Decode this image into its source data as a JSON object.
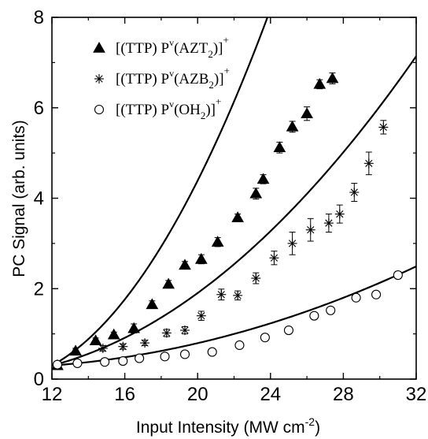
{
  "chart_data": {
    "type": "scatter",
    "xlabel": "Input Intensity (MW cm",
    "xlabel_sup": "-2",
    "xlabel_end": ")",
    "ylabel": "PC Signal (arb. units)",
    "xlim": [
      12,
      32
    ],
    "ylim": [
      0,
      8
    ],
    "xticks": [
      12,
      16,
      20,
      24,
      28,
      32
    ],
    "yticks": [
      0,
      2,
      4,
      6,
      8
    ],
    "grid": false,
    "legend_position": "top-left",
    "series": [
      {
        "legend": {
          "a": "[(TTP) P",
          "b": "v",
          "c": "(AZT",
          "d": "2",
          "e": ")]",
          "f": "+"
        },
        "marker": "filled-triangle",
        "points": [
          {
            "x": 12.3,
            "y": 0.3,
            "err": 0.06
          },
          {
            "x": 13.3,
            "y": 0.62,
            "err": 0.06
          },
          {
            "x": 14.4,
            "y": 0.85,
            "err": 0.06
          },
          {
            "x": 15.4,
            "y": 0.98,
            "err": 0.06
          },
          {
            "x": 16.5,
            "y": 1.12,
            "err": 0.1
          },
          {
            "x": 17.5,
            "y": 1.65,
            "err": 0.08
          },
          {
            "x": 18.4,
            "y": 2.1,
            "err": 0.08
          },
          {
            "x": 19.3,
            "y": 2.52,
            "err": 0.08
          },
          {
            "x": 20.2,
            "y": 2.65,
            "err": 0.1
          },
          {
            "x": 21.1,
            "y": 3.03,
            "err": 0.1
          },
          {
            "x": 22.2,
            "y": 3.57,
            "err": 0.08
          },
          {
            "x": 23.2,
            "y": 4.1,
            "err": 0.12
          },
          {
            "x": 23.6,
            "y": 4.42,
            "err": 0.1
          },
          {
            "x": 24.5,
            "y": 5.12,
            "err": 0.12
          },
          {
            "x": 25.2,
            "y": 5.58,
            "err": 0.12
          },
          {
            "x": 26.0,
            "y": 5.87,
            "err": 0.15
          },
          {
            "x": 26.7,
            "y": 6.52,
            "err": 0.1
          },
          {
            "x": 27.4,
            "y": 6.65,
            "err": 0.12
          }
        ],
        "fit_coeffs": [
          0.3,
          0.22,
          0.0364
        ]
      },
      {
        "legend": {
          "a": "[(TTP) P",
          "b": "v",
          "c": "(AZB",
          "d": "2",
          "e": ")]",
          "f": "+"
        },
        "marker": "asterisk",
        "points": [
          {
            "x": 12.3,
            "y": 0.32,
            "err": 0.05
          },
          {
            "x": 14.8,
            "y": 0.68,
            "err": 0.06
          },
          {
            "x": 15.9,
            "y": 0.72,
            "err": 0.06
          },
          {
            "x": 17.1,
            "y": 0.8,
            "err": 0.06
          },
          {
            "x": 18.3,
            "y": 1.02,
            "err": 0.08
          },
          {
            "x": 19.3,
            "y": 1.08,
            "err": 0.08
          },
          {
            "x": 20.2,
            "y": 1.4,
            "err": 0.1
          },
          {
            "x": 21.3,
            "y": 1.87,
            "err": 0.12
          },
          {
            "x": 22.2,
            "y": 1.85,
            "err": 0.1
          },
          {
            "x": 23.2,
            "y": 2.23,
            "err": 0.12
          },
          {
            "x": 24.2,
            "y": 2.68,
            "err": 0.15
          },
          {
            "x": 25.2,
            "y": 3.0,
            "err": 0.25
          },
          {
            "x": 26.2,
            "y": 3.3,
            "err": 0.25
          },
          {
            "x": 27.2,
            "y": 3.45,
            "err": 0.2
          },
          {
            "x": 27.8,
            "y": 3.65,
            "err": 0.2
          },
          {
            "x": 28.6,
            "y": 4.13,
            "err": 0.2
          },
          {
            "x": 29.4,
            "y": 4.77,
            "err": 0.25
          },
          {
            "x": 30.2,
            "y": 5.57,
            "err": 0.15
          }
        ],
        "fit_coeffs": [
          0.3,
          0.106,
          0.0118
        ]
      },
      {
        "legend": {
          "a": "[(TTP) P",
          "b": "v",
          "c": "(OH",
          "d": "2",
          "e": ")]",
          "f": "+"
        },
        "marker": "open-circle",
        "points": [
          {
            "x": 12.3,
            "y": 0.32,
            "err": 0.04
          },
          {
            "x": 13.4,
            "y": 0.35,
            "err": 0.04
          },
          {
            "x": 14.9,
            "y": 0.38,
            "err": 0.04
          },
          {
            "x": 15.9,
            "y": 0.4,
            "err": 0.04
          },
          {
            "x": 16.8,
            "y": 0.46,
            "err": 0.04
          },
          {
            "x": 18.2,
            "y": 0.5,
            "err": 0.04
          },
          {
            "x": 19.3,
            "y": 0.55,
            "err": 0.04
          },
          {
            "x": 20.8,
            "y": 0.6,
            "err": 0.04
          },
          {
            "x": 22.3,
            "y": 0.75,
            "err": 0.05
          },
          {
            "x": 23.7,
            "y": 0.92,
            "err": 0.05
          },
          {
            "x": 25.0,
            "y": 1.08,
            "err": 0.05
          },
          {
            "x": 26.4,
            "y": 1.4,
            "err": 0.06
          },
          {
            "x": 27.3,
            "y": 1.52,
            "err": 0.06
          },
          {
            "x": 28.7,
            "y": 1.8,
            "err": 0.06
          },
          {
            "x": 29.8,
            "y": 1.87,
            "err": 0.06
          },
          {
            "x": 31.0,
            "y": 2.3,
            "err": 0.08
          }
        ],
        "fit_coeffs": [
          0.3,
          0.03,
          0.00398
        ]
      }
    ]
  }
}
